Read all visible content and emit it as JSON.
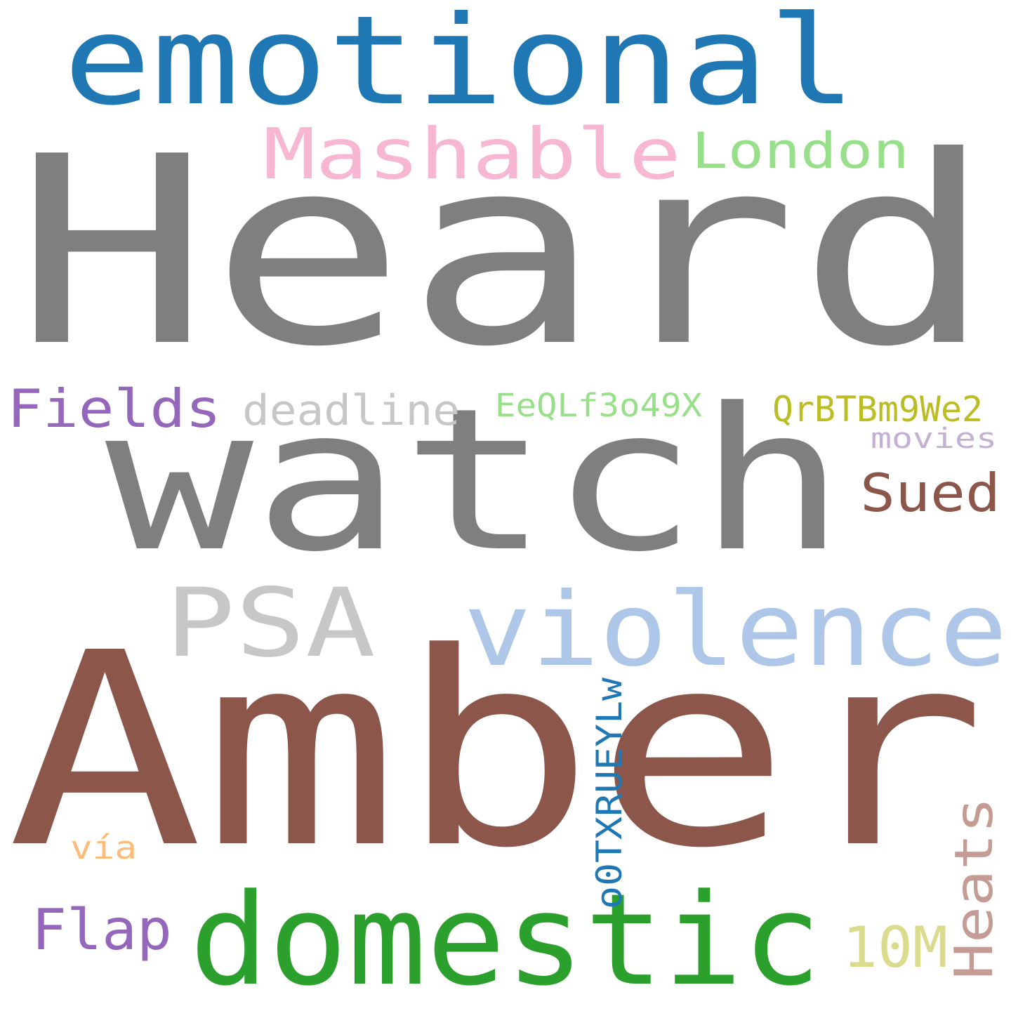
{
  "words": [
    {
      "key": "heard",
      "text": "Heard",
      "color": "#7f7f7f"
    },
    {
      "key": "amber",
      "text": "Amber",
      "color": "#8c564b"
    },
    {
      "key": "watch",
      "text": "watch",
      "color": "#7f7f7f"
    },
    {
      "key": "emotional",
      "text": "emotional",
      "color": "#1f77b4"
    },
    {
      "key": "violence",
      "text": "violence",
      "color": "#aec7e8"
    },
    {
      "key": "domestic",
      "text": "domestic",
      "color": "#2ca02c"
    },
    {
      "key": "psa",
      "text": "PSA",
      "color": "#c7c7c7"
    },
    {
      "key": "mashable",
      "text": "Mashable",
      "color": "#f7b6d2"
    },
    {
      "key": "london",
      "text": "London",
      "color": "#98df8a"
    },
    {
      "key": "fields",
      "text": "Fields",
      "color": "#9467bd"
    },
    {
      "key": "deadline",
      "text": "deadline",
      "color": "#c7c7c7"
    },
    {
      "key": "eeqlf",
      "text": "EeQLf3o49X",
      "color": "#98df8a"
    },
    {
      "key": "qrbtbm",
      "text": "QrBTBm9We2",
      "color": "#bcbd22"
    },
    {
      "key": "movies",
      "text": "movies",
      "color": "#c5b0d5"
    },
    {
      "key": "sued",
      "text": "Sued",
      "color": "#8c564b"
    },
    {
      "key": "o0txr",
      "text": "o0TXRUEYLw",
      "color": "#1f77b4"
    },
    {
      "key": "heats",
      "text": "Heats",
      "color": "#c49c94"
    },
    {
      "key": "tenm",
      "text": "10M",
      "color": "#dbdb8d"
    },
    {
      "key": "flap",
      "text": "Flap",
      "color": "#9467bd"
    },
    {
      "key": "via",
      "text": "vía",
      "color": "#ffbb78"
    }
  ]
}
